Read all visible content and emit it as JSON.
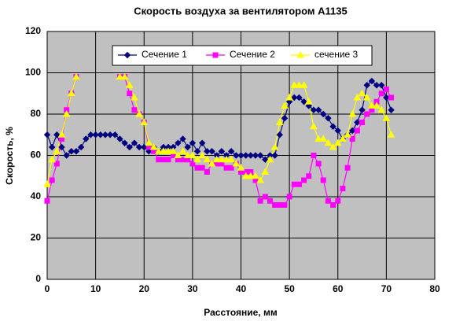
{
  "chart_data": {
    "type": "line",
    "title": "Скорость воздуха за вентилятором А1135",
    "x_label": "Расстояние, мм",
    "y_label": "Скорость, %",
    "x": [
      0,
      1,
      2,
      3,
      4,
      5,
      6,
      7,
      8,
      9,
      10,
      11,
      12,
      13,
      14,
      15,
      16,
      17,
      18,
      19,
      20,
      21,
      22,
      23,
      24,
      25,
      26,
      27,
      28,
      29,
      30,
      31,
      32,
      33,
      34,
      35,
      36,
      37,
      38,
      39,
      40,
      41,
      42,
      43,
      44,
      45,
      46,
      47,
      48,
      49,
      50,
      51,
      52,
      53,
      54,
      55,
      56,
      57,
      58,
      59,
      60,
      61,
      62,
      63,
      64,
      65,
      66,
      67,
      68,
      69,
      70,
      71
    ],
    "series": [
      {
        "name": "Сечение 1",
        "color": "#000080",
        "marker": "diamond",
        "values": [
          70,
          64,
          70,
          64,
          60,
          62,
          62,
          64,
          68,
          70,
          70,
          70,
          70,
          70,
          70,
          68,
          66,
          64,
          66,
          64,
          64,
          62,
          64,
          62,
          64,
          64,
          64,
          66,
          68,
          64,
          66,
          62,
          66,
          62,
          62,
          60,
          62,
          60,
          62,
          60,
          60,
          60,
          60,
          60,
          60,
          58,
          60,
          60,
          70,
          78,
          86,
          88,
          88,
          86,
          84,
          82,
          82,
          80,
          78,
          74,
          72,
          68,
          70,
          72,
          76,
          82,
          94,
          96,
          94,
          94,
          88,
          82
        ]
      },
      {
        "name": "Сечение 2",
        "color": "#ff00ff",
        "marker": "square",
        "values": [
          38,
          48,
          56,
          68,
          82,
          90,
          98,
          null,
          null,
          null,
          null,
          null,
          null,
          null,
          null,
          98,
          98,
          90,
          82,
          80,
          76,
          64,
          62,
          58,
          58,
          58,
          60,
          58,
          58,
          58,
          56,
          54,
          54,
          52,
          56,
          56,
          56,
          54,
          54,
          56,
          52,
          52,
          52,
          48,
          38,
          40,
          38,
          36,
          36,
          36,
          40,
          46,
          46,
          48,
          50,
          60,
          56,
          48,
          38,
          36,
          38,
          44,
          54,
          68,
          72,
          76,
          80,
          82,
          86,
          90,
          92,
          88
        ]
      },
      {
        "name": "сечение 3",
        "color": "#ffff00",
        "marker": "triangle",
        "values": [
          46,
          58,
          62,
          70,
          80,
          90,
          98,
          null,
          null,
          null,
          null,
          null,
          null,
          null,
          null,
          98,
          98,
          94,
          88,
          80,
          76,
          66,
          64,
          62,
          62,
          62,
          62,
          60,
          62,
          60,
          60,
          58,
          60,
          58,
          56,
          58,
          58,
          58,
          58,
          56,
          54,
          50,
          50,
          50,
          48,
          52,
          58,
          64,
          76,
          84,
          88,
          94,
          94,
          94,
          86,
          74,
          68,
          68,
          66,
          64,
          66,
          68,
          70,
          80,
          88,
          90,
          88,
          84,
          84,
          82,
          78,
          70
        ]
      }
    ],
    "xlim": [
      0,
      80
    ],
    "xticks": [
      0,
      10,
      20,
      30,
      40,
      50,
      60,
      70,
      80
    ],
    "ylim": [
      0,
      120
    ],
    "yticks": [
      0,
      20,
      40,
      60,
      80,
      100,
      120
    ],
    "grid": true,
    "legend": "top"
  }
}
